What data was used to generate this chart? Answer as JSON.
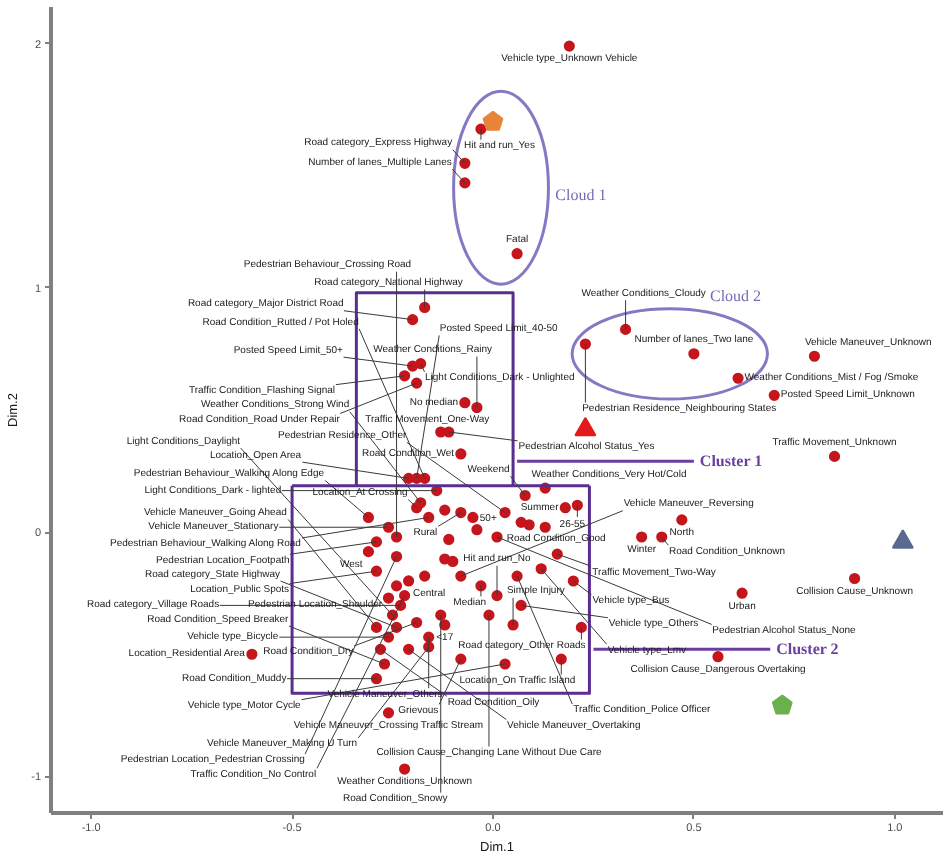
{
  "chart_data": {
    "type": "scatter",
    "xlabel": "Dim.1",
    "ylabel": "Dim.2",
    "xlim": [
      -1.1,
      1.12
    ],
    "ylim": [
      -1.15,
      2.15
    ],
    "xticks": [
      {
        "value": -1,
        "label": "-1.0"
      },
      {
        "value": -0.5,
        "label": "-0.5"
      },
      {
        "value": 0,
        "label": "0.0"
      },
      {
        "value": 0.5,
        "label": "0.5"
      },
      {
        "value": 1,
        "label": "1.0"
      }
    ],
    "yticks": [
      -1,
      0,
      1,
      2
    ],
    "grid": false,
    "series": [
      {
        "marker": "circle",
        "color": "#c4161c",
        "x": [
          0.19,
          -0.03,
          -0.07,
          -0.07,
          0.06,
          -0.17,
          -0.2,
          -0.2,
          -0.18,
          -0.22,
          -0.19,
          -0.07,
          -0.04,
          -0.13,
          -0.11,
          0.33,
          0.23,
          0.5,
          0.61,
          0.8,
          0.7,
          0.85,
          -0.08,
          -0.21,
          -0.19,
          -0.17,
          -0.14,
          -0.18,
          -0.19,
          -0.16,
          -0.31,
          -0.26,
          -0.29,
          -0.24,
          -0.31,
          -0.24,
          -0.29,
          -0.26,
          -0.21,
          -0.22,
          -0.25,
          -0.29,
          -0.26,
          -0.6,
          -0.27,
          -0.21,
          -0.16,
          -0.29,
          -0.24,
          -0.28,
          -0.26,
          -0.23,
          -0.16,
          -0.19,
          -0.12,
          -0.22,
          -0.13,
          -0.08,
          0.03,
          0.05,
          -0.01,
          0.01,
          0.06,
          0.17,
          0.56,
          0.22,
          0.12,
          0.2,
          0.07,
          -0.03,
          0.62,
          0.16,
          0.37,
          0.01,
          0.9,
          0.18,
          0.21,
          0.47,
          0.13,
          0.42,
          0.13,
          0.08,
          -0.08,
          -0.05,
          0.03,
          -0.08,
          -0.11,
          -0.04,
          0.07,
          0.09,
          -0.17,
          -0.12,
          -0.1,
          -0.12,
          -0.24
        ],
        "values": [
          1.99,
          1.65,
          1.51,
          1.43,
          1.14,
          0.92,
          0.87,
          0.68,
          0.69,
          0.64,
          0.61,
          0.53,
          0.51,
          0.41,
          0.41,
          0.83,
          0.77,
          0.73,
          0.63,
          0.72,
          0.56,
          0.31,
          0.32,
          0.22,
          0.22,
          0.22,
          0.17,
          0.12,
          0.1,
          0.06,
          0.06,
          0.02,
          -0.04,
          -0.02,
          -0.08,
          -0.1,
          -0.16,
          -0.27,
          -0.2,
          -0.26,
          -0.34,
          -0.39,
          -0.43,
          -0.5,
          -0.54,
          -0.48,
          -0.43,
          -0.6,
          -0.39,
          -0.48,
          -0.74,
          -0.3,
          -0.47,
          -0.37,
          -0.38,
          -0.97,
          -0.34,
          -0.52,
          -0.54,
          -0.38,
          -0.34,
          -0.26,
          -0.18,
          -0.52,
          -0.51,
          -0.39,
          -0.15,
          -0.2,
          -0.3,
          -0.22,
          -0.25,
          -0.09,
          -0.02,
          -0.02,
          -0.19,
          0.1,
          0.11,
          0.05,
          0.02,
          -0.02,
          0.18,
          0.15,
          0.08,
          0.06,
          0.08,
          -0.18,
          -0.03,
          0.01,
          0.04,
          0.03,
          -0.18,
          -0.11,
          -0.12,
          0.09,
          -0.22
        ],
        "value_labels": [
          "Vehicle type_Unknown Vehicle",
          "Hit and run_Yes",
          "Road category_Express Highway",
          "Number of lanes_Multiple Lanes",
          "Fatal",
          "Road category_National Highway",
          "Road category_Major District Road",
          "Posted Speed Limit_50+",
          "Light Conditions_Dark - Unlighted",
          "Traffic Condition_Flashing Signal",
          "Road Condition_Road Under Repair",
          "No median",
          "Weather Conditions_Rainy",
          "Traffic Movement_One-Way",
          "Pedestrian Alcohol Status_Yes",
          "Weather Conditions_Cloudy",
          "Pedestrian Residence_Neighbouring States",
          "Number of lanes_Two lane",
          "Weather Conditions_Mist / Fog /Smoke",
          "Vehicle Maneuver_Unknown",
          "Posted Speed Limit_Unknown",
          "Traffic Movement_Unknown",
          "Road Condition_Wet",
          "Location_Open Area",
          "Posted Speed Limit_40-50",
          "Road Condition_Rutted / Pot Holed",
          "Light Conditions_Dark - lighted",
          "Weather Conditions_Strong Wind",
          "Location_At Crossing",
          "Pedestrian Behaviour_Walking Along Road",
          "Pedestrian Behaviour_Walking Along Edge",
          "Vehicle Maneuver_Stationary",
          "Pedestrian Location_Footpath",
          "Pedestrian Behaviour_Crossing Road",
          "West",
          "Pedestrian Location_Pedestrian Crossing",
          "Location_Public Spots",
          "Pedestrian Location_Shoulder",
          "Central",
          "Traffic Condition_No Control",
          "Light Conditions_Daylight",
          "Vehicle Maneuver_Going Ahead",
          "Vehicle type_Bicycle",
          "Location_Residential Area",
          "Road Condition_Speed Breaker",
          "Vehicle Maneuver_Overtaking",
          "Vehicle Maneuver_Others",
          "Road Condition_Muddy",
          "Road category_State Highway",
          "Road Condition_Oily",
          "Vehicle Maneuver_Crossing Traffic Stream",
          "Road category_Village Roads",
          "Vehicle Maneuver_Making U Turn",
          "Road Condition_Dry",
          "<17",
          "Weather Conditions_Unknown",
          "Road Condition_Snowy",
          "Grievous",
          "Vehicle type_Motor Cycle",
          "Simple Injury",
          "Collision Cause_Changing Lane Without Due Care",
          "Hit and run_No",
          "Traffic Condition_Police Officer",
          "Location_On Traffic Island",
          "Collision Cause_Dangerous Overtaking",
          "Road category_Other Roads",
          "Vehicle type_Lmv",
          "Vehicle type_Bus",
          "Vehicle type_Others",
          "Median",
          "Urban",
          "Traffic Movement_Two-Way",
          "Winter",
          "Pedestrian Alcohol Status_None",
          "Collision Cause_Unknown",
          "Summer",
          "26-55",
          "North",
          "Road Condition_Good",
          "Road Condition_Unknown",
          "Weather Conditions_Very Hot/Cold",
          "Weekend",
          "Rural",
          "50+",
          "Pedestrian Residence_Other",
          "Vehicle Maneuver_Reversing",
          null,
          null,
          null,
          null,
          null,
          null,
          null,
          null,
          null
        ]
      },
      {
        "color": "#e8833a",
        "x": [
          0.0
        ],
        "values": [
          1.68
        ]
      },
      {
        "marker": "triangle",
        "color": "#e31a1c",
        "x": [
          0.23
        ],
        "values": [
          0.42
        ]
      },
      {
        "marker": "triangle",
        "color": "#59698f",
        "x": [
          1.02
        ],
        "values": [
          -0.04
        ]
      },
      {
        "color": "#6ab04c",
        "x": [
          0.72
        ],
        "values": [
          -0.71
        ]
      },
      {
        "type": "line",
        "color": "#5a2d91",
        "x": [
          -0.34,
          -0.34,
          0.05,
          0.05
        ],
        "values": [
          0.19,
          0.98,
          0.98,
          0.19
        ]
      },
      {
        "type": "line",
        "color": "#5a2d91",
        "x": [
          -0.5,
          -0.5,
          0.24,
          0.24
        ],
        "values": [
          0.19,
          -0.66,
          -0.66,
          0.19
        ]
      },
      {
        "type": "line",
        "color": "#5a2d91",
        "x": [
          -0.5,
          0.24
        ],
        "values": [
          0.19,
          0.19
        ]
      },
      {
        "type": "line",
        "name": "Cluster 1",
        "color": "#6b3fa0",
        "x": [
          0.06,
          0.5
        ],
        "values": [
          0.29,
          0.29
        ]
      },
      {
        "type": "line",
        "name": "Cluster 2",
        "color": "#6b3fa0",
        "x": [
          0.25,
          0.69
        ],
        "values": [
          -0.48,
          -0.48
        ]
      }
    ],
    "annotations": [
      "Cloud 1",
      "Cloud 2"
    ]
  }
}
